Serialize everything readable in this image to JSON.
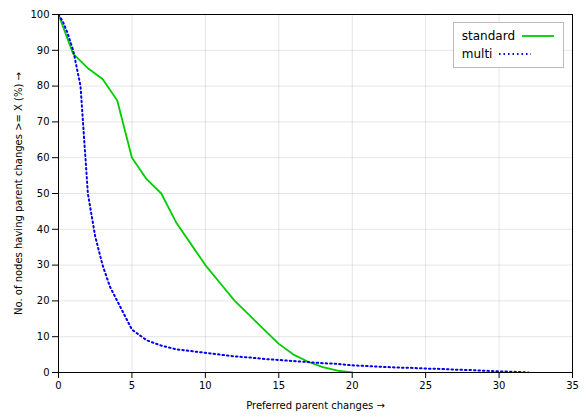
{
  "chart_data": {
    "type": "line",
    "xlabel": "Preferred parent changes",
    "ylabel": "No. of nodes having parent changes >= X (%)",
    "xlim": [
      0,
      35
    ],
    "ylim": [
      0,
      100
    ],
    "xticks": [
      0,
      5,
      10,
      15,
      20,
      25,
      30,
      35
    ],
    "yticks": [
      0,
      10,
      20,
      30,
      40,
      50,
      60,
      70,
      80,
      90,
      100
    ],
    "grid": true,
    "legend": "upper right",
    "series": [
      {
        "name": "standard",
        "color": "#00cc00",
        "line_style": "solid",
        "x": [
          0,
          1,
          2,
          3,
          4,
          5,
          6,
          7,
          8,
          9,
          10,
          11,
          12,
          13,
          14,
          15,
          16,
          17,
          18,
          19,
          20
        ],
        "values": [
          100,
          89,
          85,
          82,
          76,
          60,
          54,
          50,
          42,
          36,
          30,
          25,
          20,
          16,
          12,
          8,
          5,
          3,
          1.5,
          0.5,
          0
        ]
      },
      {
        "name": "multi",
        "color": "#0000ee",
        "line_style": "dotted",
        "x": [
          0,
          0.3,
          0.6,
          1,
          1.5,
          2,
          2.5,
          3,
          3.5,
          4,
          4.5,
          5,
          6,
          7,
          8,
          9,
          10,
          11,
          12,
          13,
          14,
          15,
          16,
          17,
          18,
          19,
          20,
          21,
          22,
          23,
          24,
          25,
          26,
          27,
          28,
          29,
          30,
          31,
          32
        ],
        "values": [
          100,
          98,
          95,
          90,
          80,
          50,
          38,
          30,
          24,
          20,
          16,
          12,
          9,
          7.5,
          6.5,
          6,
          5.5,
          5,
          4.5,
          4.2,
          3.8,
          3.5,
          3.2,
          2.9,
          2.6,
          2.4,
          2.0,
          1.8,
          1.6,
          1.4,
          1.3,
          1.1,
          1.0,
          0.8,
          0.7,
          0.5,
          0.3,
          0.2,
          0
        ]
      }
    ]
  }
}
